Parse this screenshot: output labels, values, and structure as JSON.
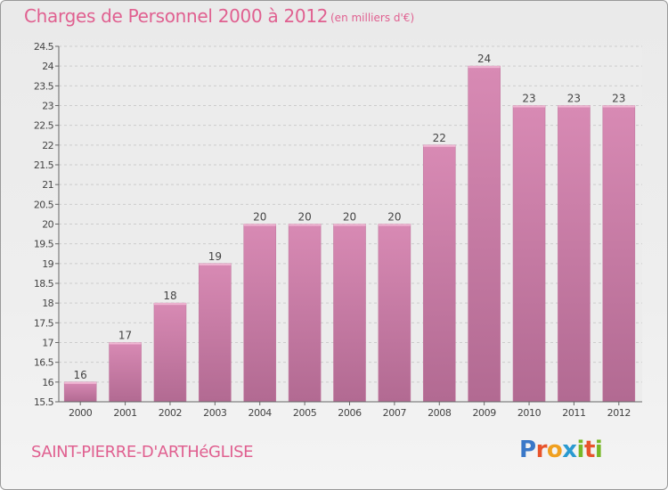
{
  "title": "Charges de Personnel 2000 à 2012",
  "subtitle": "(en milliers d'€)",
  "commune": "SAINT-PIERRE-D'ARTHéGLISE",
  "logo": {
    "letters": [
      "P",
      "r",
      "o",
      "x",
      "i",
      "t",
      "i"
    ],
    "colors": [
      "#3a78c8",
      "#e8542c",
      "#f0a020",
      "#2a9ad0",
      "#78b828",
      "#e8542c",
      "#78b828"
    ]
  },
  "colors": {
    "bar": "#d88ab4",
    "bar_dark": "#b26a92",
    "text": "#e06090"
  },
  "chart_data": {
    "type": "bar",
    "categories": [
      "2000",
      "2001",
      "2002",
      "2003",
      "2004",
      "2005",
      "2006",
      "2007",
      "2008",
      "2009",
      "2010",
      "2011",
      "2012"
    ],
    "values": [
      16,
      17,
      18,
      19,
      20,
      20,
      20,
      20,
      22,
      24,
      23,
      23,
      23
    ],
    "data_labels": [
      "16",
      "17",
      "18",
      "19",
      "20",
      "20",
      "20",
      "20",
      "22",
      "24",
      "23",
      "23",
      "23"
    ],
    "ylim": [
      15.5,
      24.5
    ],
    "yticks": [
      "15.5",
      "16",
      "16.5",
      "17",
      "17.5",
      "18",
      "18.5",
      "19",
      "19.5",
      "20",
      "20.5",
      "21",
      "21.5",
      "22",
      "22.5",
      "23",
      "23.5",
      "24",
      "24.5"
    ],
    "grid": true,
    "xlabel": "",
    "ylabel": ""
  }
}
